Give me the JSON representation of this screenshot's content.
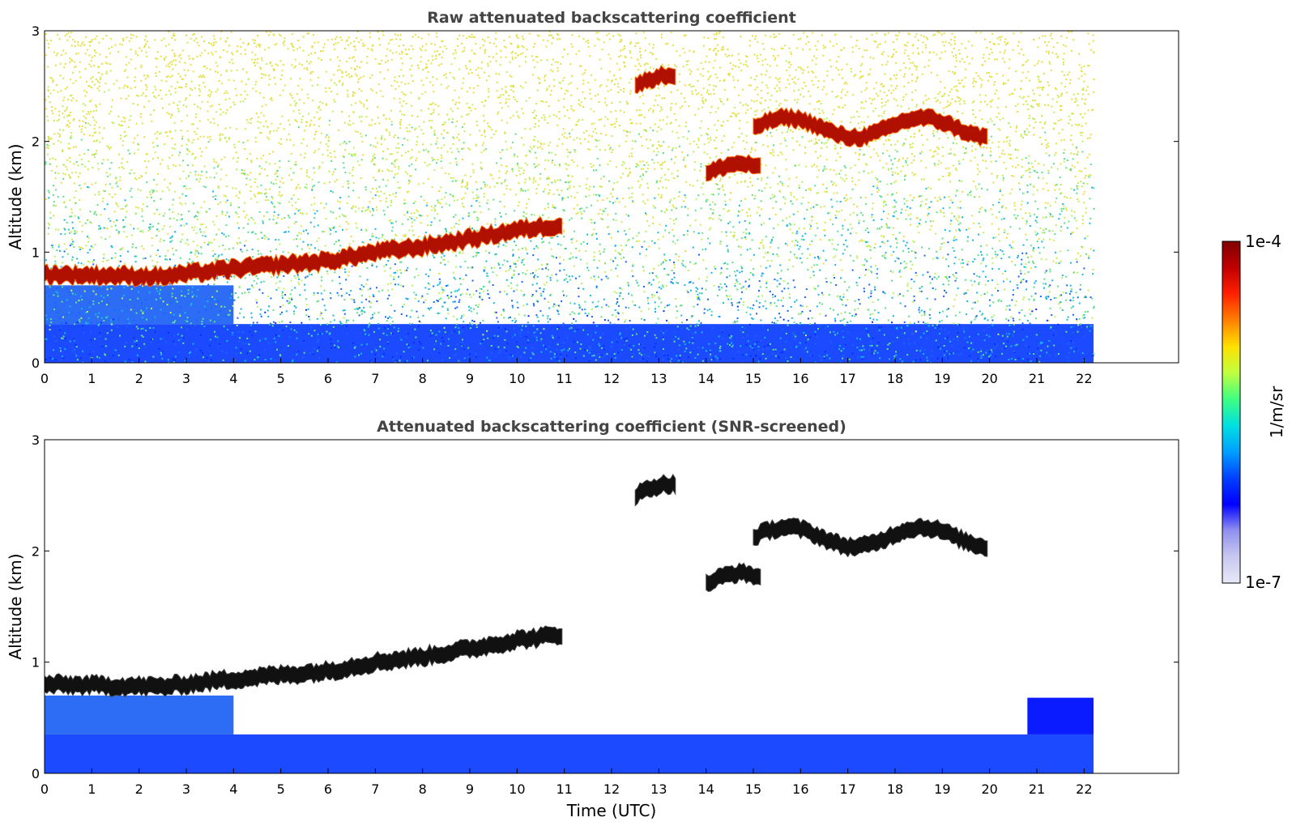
{
  "chart_data": [
    {
      "type": "heatmap",
      "title": "Raw attenuated backscattering coefficient",
      "ylabel": "Altitude (km)",
      "xlabel": "",
      "xlim": [
        0,
        24
      ],
      "ylim": [
        0,
        3
      ],
      "xticks": [
        0,
        1,
        2,
        3,
        4,
        5,
        6,
        7,
        8,
        9,
        10,
        11,
        12,
        13,
        14,
        15,
        16,
        17,
        18,
        19,
        20,
        21,
        22
      ],
      "yticks": [
        0,
        1,
        2,
        3
      ],
      "data_end_hour": 22.2,
      "noise": true,
      "boundary_layer_top_km": [
        [
          0,
          0.8
        ],
        [
          2.5,
          0.78
        ],
        [
          4,
          0.85
        ],
        [
          6,
          0.92
        ],
        [
          7,
          1.0
        ],
        [
          8,
          1.05
        ],
        [
          9,
          1.12
        ],
        [
          10,
          1.2
        ],
        [
          11,
          1.25
        ]
      ],
      "cloud_layers": [
        {
          "x": [
            12.5,
            13.4
          ],
          "y": [
            2.3,
            2.7
          ]
        },
        {
          "x": [
            14.0,
            15.2
          ],
          "y": [
            1.5,
            1.9
          ]
        },
        {
          "x": [
            15.0,
            20.0
          ],
          "y": [
            1.95,
            2.3
          ]
        }
      ]
    },
    {
      "type": "heatmap",
      "title": "Attenuated backscattering coefficient (SNR-screened)",
      "ylabel": "Altitude (km)",
      "xlabel": "Time (UTC)",
      "xlim": [
        0,
        24
      ],
      "ylim": [
        0,
        3
      ],
      "xticks": [
        0,
        1,
        2,
        3,
        4,
        5,
        6,
        7,
        8,
        9,
        10,
        11,
        12,
        13,
        14,
        15,
        16,
        17,
        18,
        19,
        20,
        21,
        22
      ],
      "yticks": [
        0,
        1,
        2,
        3
      ],
      "data_end_hour": 22.2,
      "noise": false,
      "boundary_layer_top_km": [
        [
          0,
          0.8
        ],
        [
          2.5,
          0.78
        ],
        [
          4,
          0.85
        ],
        [
          6,
          0.92
        ],
        [
          7,
          1.0
        ],
        [
          8,
          1.05
        ],
        [
          9,
          1.12
        ],
        [
          10,
          1.2
        ],
        [
          11,
          1.25
        ]
      ],
      "cloud_layers": [
        {
          "x": [
            12.5,
            13.4
          ],
          "y": [
            2.3,
            2.7
          ]
        },
        {
          "x": [
            14.0,
            15.2
          ],
          "y": [
            1.5,
            1.9
          ]
        },
        {
          "x": [
            15.0,
            20.0
          ],
          "y": [
            1.95,
            2.3
          ]
        }
      ]
    }
  ],
  "colorbar": {
    "label": "1/m/sr",
    "max_label": "1e-4",
    "min_label": "1e-7",
    "colors": [
      "#e8e8f8",
      "#c8c8f0",
      "#9090f0",
      "#0000ff",
      "#0040ff",
      "#00a0ff",
      "#00e0e0",
      "#40ff80",
      "#c0ff40",
      "#ffe000",
      "#ff8000",
      "#ff2000",
      "#c00000",
      "#800000"
    ]
  }
}
